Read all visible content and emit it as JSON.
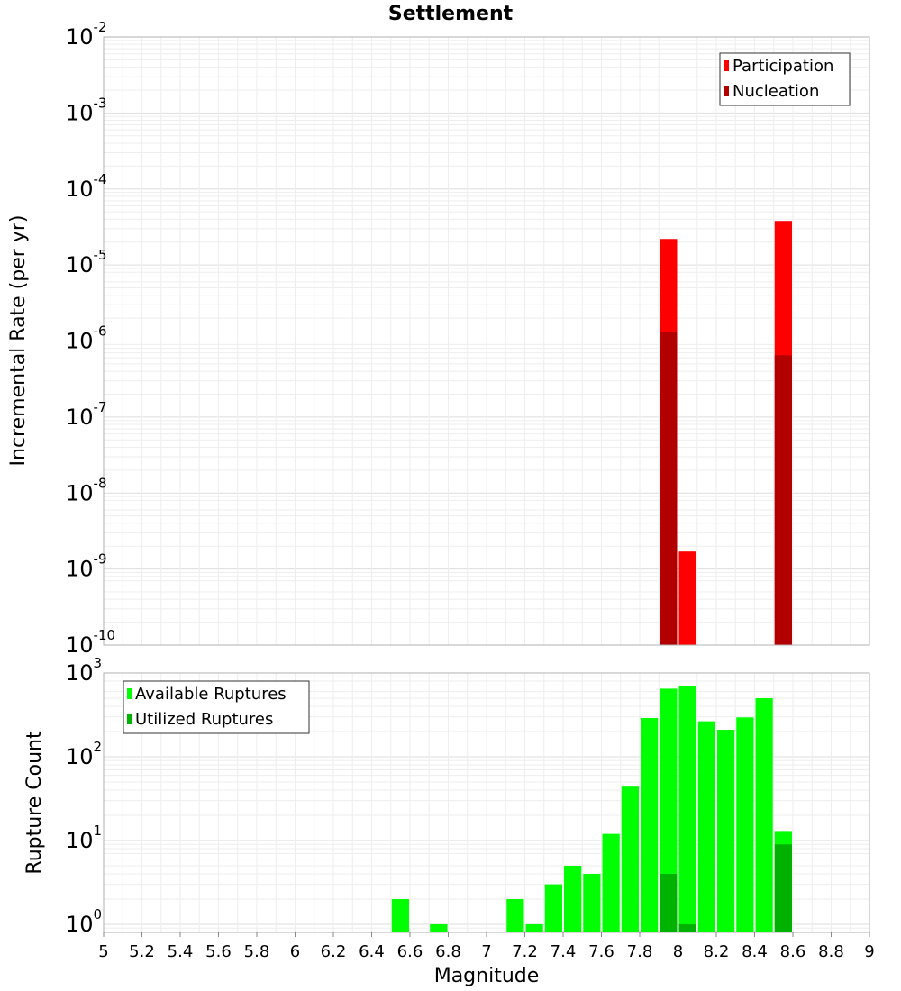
{
  "chart_data": [
    {
      "type": "bar",
      "title": "Settlement",
      "ylabel": "Incremental Rate (per yr)",
      "xlabel": "",
      "yscale": "log",
      "ylim": [
        1e-10,
        0.01
      ],
      "xlim": [
        5,
        9
      ],
      "grid": true,
      "legend_position": "top-right",
      "legend": [
        "Participation",
        "Nucleation"
      ],
      "yticks": [
        {
          "base": "10",
          "exp": "-10",
          "value": 1e-10
        },
        {
          "base": "10",
          "exp": "-9",
          "value": 1e-09
        },
        {
          "base": "10",
          "exp": "-8",
          "value": 1e-08
        },
        {
          "base": "10",
          "exp": "-7",
          "value": 1e-07
        },
        {
          "base": "10",
          "exp": "-6",
          "value": 1e-06
        },
        {
          "base": "10",
          "exp": "-5",
          "value": 1e-05
        },
        {
          "base": "10",
          "exp": "-4",
          "value": 0.0001
        },
        {
          "base": "10",
          "exp": "-3",
          "value": 0.001
        },
        {
          "base": "10",
          "exp": "-2",
          "value": 0.01
        }
      ],
      "series": [
        {
          "name": "Participation",
          "color": "#ff0000",
          "points": [
            {
              "x": 7.95,
              "y": 2.2e-05
            },
            {
              "x": 8.05,
              "y": 1.7e-09
            },
            {
              "x": 8.55,
              "y": 3.8e-05
            }
          ]
        },
        {
          "name": "Nucleation",
          "color": "#b20000",
          "points": [
            {
              "x": 7.95,
              "y": 1.3e-06
            },
            {
              "x": 8.55,
              "y": 6.5e-07
            }
          ]
        }
      ]
    },
    {
      "type": "bar",
      "title": "",
      "ylabel": "Rupture Count",
      "xlabel": "Magnitude",
      "yscale": "log",
      "ylim": [
        0.8,
        1000
      ],
      "xlim": [
        5,
        9
      ],
      "grid": true,
      "legend_position": "top-left",
      "legend": [
        "Available Ruptures",
        "Utilized Ruptures"
      ],
      "xticks": [
        "5",
        "5.2",
        "5.4",
        "5.6",
        "5.8",
        "6",
        "6.2",
        "6.4",
        "6.6",
        "6.8",
        "7",
        "7.2",
        "7.4",
        "7.6",
        "7.8",
        "8",
        "8.2",
        "8.4",
        "8.6",
        "8.8",
        "9"
      ],
      "yticks": [
        {
          "base": "10",
          "exp": "0",
          "value": 1
        },
        {
          "base": "10",
          "exp": "1",
          "value": 10
        },
        {
          "base": "10",
          "exp": "2",
          "value": 100
        },
        {
          "base": "10",
          "exp": "3",
          "value": 1000
        }
      ],
      "series": [
        {
          "name": "Available Ruptures",
          "color": "#00ff00",
          "points": [
            {
              "x": 6.55,
              "y": 2
            },
            {
              "x": 6.75,
              "y": 1
            },
            {
              "x": 7.15,
              "y": 2
            },
            {
              "x": 7.25,
              "y": 1
            },
            {
              "x": 7.35,
              "y": 3
            },
            {
              "x": 7.45,
              "y": 5
            },
            {
              "x": 7.55,
              "y": 4
            },
            {
              "x": 7.65,
              "y": 12
            },
            {
              "x": 7.75,
              "y": 44
            },
            {
              "x": 7.85,
              "y": 290
            },
            {
              "x": 7.95,
              "y": 650
            },
            {
              "x": 8.05,
              "y": 700
            },
            {
              "x": 8.15,
              "y": 265
            },
            {
              "x": 8.25,
              "y": 210
            },
            {
              "x": 8.35,
              "y": 295
            },
            {
              "x": 8.45,
              "y": 500
            },
            {
              "x": 8.55,
              "y": 13
            }
          ]
        },
        {
          "name": "Utilized Ruptures",
          "color": "#00b200",
          "points": [
            {
              "x": 7.95,
              "y": 4
            },
            {
              "x": 8.05,
              "y": 1
            },
            {
              "x": 8.55,
              "y": 9
            }
          ]
        }
      ]
    }
  ]
}
